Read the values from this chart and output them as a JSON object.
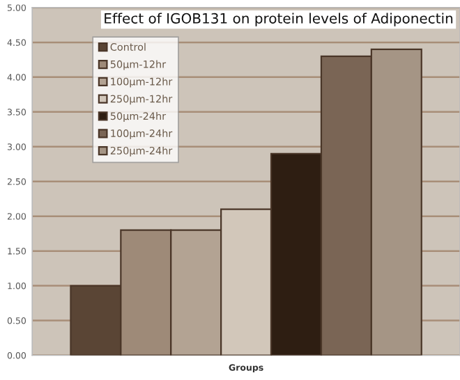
{
  "chart_data": {
    "type": "bar",
    "title": "Effect of IGOB131 on protein levels of Adiponectin",
    "xlabel": "Groups",
    "categories": [
      null
    ],
    "series": [
      {
        "name": "Control",
        "color": "#5a4535",
        "values": [
          1.0
        ]
      },
      {
        "name": "50µm-12hr",
        "color": "#9e8a78",
        "values": [
          1.8
        ]
      },
      {
        "name": "100µm-12hr",
        "color": "#b3a393",
        "values": [
          1.8
        ]
      },
      {
        "name": "250µm-12hr",
        "color": "#d2c7ba",
        "values": [
          2.1
        ]
      },
      {
        "name": "50µm-24hr",
        "color": "#2e1e12",
        "values": [
          2.9
        ]
      },
      {
        "name": "100µm-24hr",
        "color": "#7a6555",
        "values": [
          4.3
        ]
      },
      {
        "name": "250µm-24hr",
        "color": "#a59585",
        "values": [
          4.4
        ]
      }
    ],
    "ylim": [
      0,
      5
    ],
    "yticks": [
      {
        "value": 0,
        "label": "0.00"
      },
      {
        "value": 0.5,
        "label": "0.50"
      },
      {
        "value": 1,
        "label": "1.00"
      },
      {
        "value": 1.5,
        "label": "1.50"
      },
      {
        "value": 2,
        "label": "2.00"
      },
      {
        "value": 2.5,
        "label": "2.50"
      },
      {
        "value": 3,
        "label": "3.00"
      },
      {
        "value": 3.5,
        "label": "3.50"
      },
      {
        "value": 4,
        "label": "4.00"
      },
      {
        "value": 4.5,
        "label": "4.50"
      },
      {
        "value": 5,
        "label": "5.00"
      }
    ],
    "grid": "y",
    "legend": "top left"
  }
}
